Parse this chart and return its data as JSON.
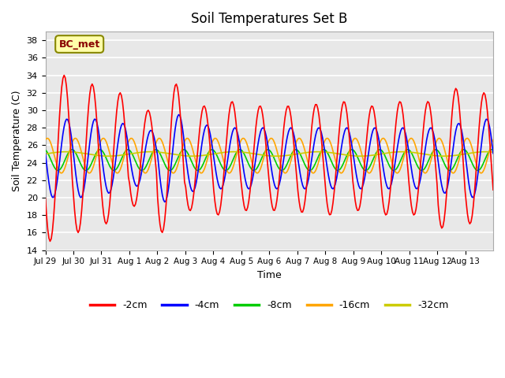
{
  "title": "Soil Temperatures Set B",
  "xlabel": "Time",
  "ylabel": "Soil Temperature (C)",
  "ylim": [
    14,
    39
  ],
  "yticks": [
    14,
    16,
    18,
    20,
    22,
    24,
    26,
    28,
    30,
    32,
    34,
    36,
    38
  ],
  "bg_color": "#e8e8e8",
  "line_colors": {
    "-2cm": "#ff0000",
    "-4cm": "#0000ff",
    "-8cm": "#00cc00",
    "-16cm": "#ffa500",
    "-32cm": "#cccc00"
  },
  "x_tick_labels": [
    "Jul 29",
    "Jul 30",
    "Jul 31",
    "Aug 1",
    "Aug 2",
    "Aug 3",
    "Aug 4",
    "Aug 5",
    "Aug 6",
    "Aug 7",
    "Aug 8",
    "Aug 9",
    "Aug 10",
    "Aug 11",
    "Aug 12",
    "Aug 13"
  ],
  "num_days": 16,
  "annotation_text": "BC_met",
  "annotation_facecolor": "#ffffaa",
  "annotation_edgecolor": "#888800",
  "annotation_textcolor": "#880000"
}
